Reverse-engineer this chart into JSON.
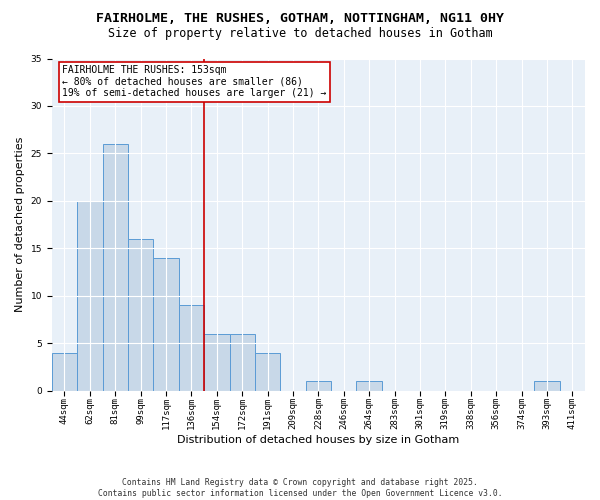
{
  "title_line1": "FAIRHOLME, THE RUSHES, GOTHAM, NOTTINGHAM, NG11 0HY",
  "title_line2": "Size of property relative to detached houses in Gotham",
  "xlabel": "Distribution of detached houses by size in Gotham",
  "ylabel": "Number of detached properties",
  "bar_labels": [
    "44sqm",
    "62sqm",
    "81sqm",
    "99sqm",
    "117sqm",
    "136sqm",
    "154sqm",
    "172sqm",
    "191sqm",
    "209sqm",
    "228sqm",
    "246sqm",
    "264sqm",
    "283sqm",
    "301sqm",
    "319sqm",
    "338sqm",
    "356sqm",
    "374sqm",
    "393sqm",
    "411sqm"
  ],
  "bar_values": [
    4,
    20,
    26,
    16,
    14,
    9,
    6,
    6,
    4,
    0,
    1,
    0,
    1,
    0,
    0,
    0,
    0,
    0,
    0,
    1,
    0
  ],
  "bar_color": "#c8d8e8",
  "bar_edge_color": "#5b9bd5",
  "vline_x_index": 6,
  "vline_color": "#cc0000",
  "annotation_text": "FAIRHOLME THE RUSHES: 153sqm\n← 80% of detached houses are smaller (86)\n19% of semi-detached houses are larger (21) →",
  "annotation_box_color": "#cc0000",
  "annotation_fill": "#ffffff",
  "ylim": [
    0,
    35
  ],
  "yticks": [
    0,
    5,
    10,
    15,
    20,
    25,
    30,
    35
  ],
  "bg_color": "#e8f0f8",
  "footer_text": "Contains HM Land Registry data © Crown copyright and database right 2025.\nContains public sector information licensed under the Open Government Licence v3.0.",
  "title_fontsize": 9.5,
  "subtitle_fontsize": 8.5,
  "axis_label_fontsize": 8,
  "tick_fontsize": 6.5,
  "annotation_fontsize": 7,
  "footer_fontsize": 5.8
}
